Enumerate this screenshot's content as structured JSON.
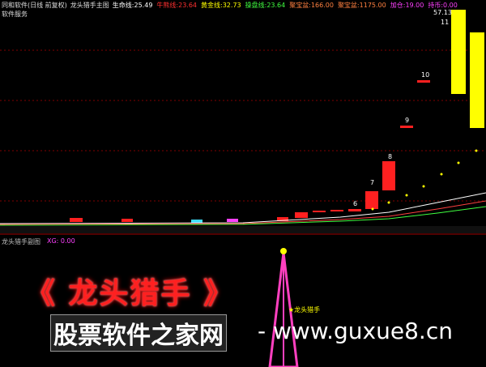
{
  "header": {
    "security": "同和软件(日线 前复权)",
    "indicator": "龙头猎手主图",
    "stats": [
      {
        "label": "生命线:",
        "value": "25.49"
      },
      {
        "label": "牛熊线:",
        "value": "23.64"
      },
      {
        "label": "黄金线:",
        "value": "32.73"
      },
      {
        "label": "操盘线:",
        "value": "23.64"
      },
      {
        "label": "聚宝盆:",
        "value": "166.00"
      },
      {
        "label": "聚宝盆:",
        "value": "1175.00"
      },
      {
        "label": "加仓:",
        "value": "19.00"
      },
      {
        "label": "持币:",
        "value": "0.00"
      }
    ]
  },
  "sector": "软件服务",
  "price_labels": [
    "57.13",
    "11",
    "10",
    "9",
    "8",
    "7",
    "6"
  ],
  "sub_panel": {
    "title": "龙头猎手副图",
    "stat": "XG: 0.00"
  },
  "watermark": {
    "title": "《 龙头猎手 》",
    "site": "股票软件之家网",
    "url": "- www.guxue8.cn"
  },
  "signal": "★龙头猎手"
}
